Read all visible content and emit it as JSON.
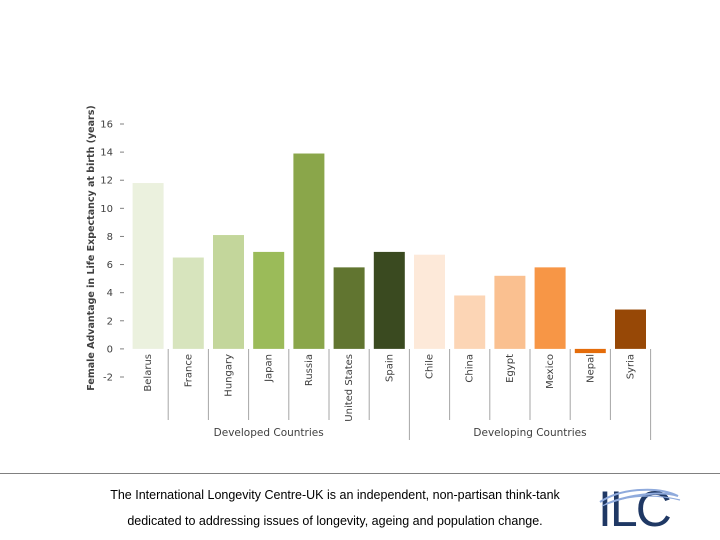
{
  "chart_data": {
    "type": "bar",
    "title": "",
    "xlabel": "",
    "ylabel": "Female Advantage in Life Expectancy at birth (years)",
    "ylim": [
      -2,
      16
    ],
    "yticks": [
      -2,
      0,
      2,
      4,
      6,
      8,
      10,
      12,
      14,
      16
    ],
    "grid": false,
    "categories": [
      "Belarus",
      "France",
      "Hungary",
      "Japan",
      "Russia",
      "United States",
      "Spain",
      "Chile",
      "China",
      "Egypt",
      "Mexico",
      "Nepal",
      "Syria"
    ],
    "values": [
      11.8,
      6.5,
      8.1,
      6.9,
      13.9,
      5.8,
      6.9,
      6.7,
      3.8,
      5.2,
      5.8,
      -0.3,
      2.8
    ],
    "colors": [
      "#ebf1de",
      "#d7e4bd",
      "#c3d69b",
      "#9bbb59",
      "#8aa64a",
      "#617530",
      "#3a4a20",
      "#fde9d9",
      "#fcd5b5",
      "#fac090",
      "#f79646",
      "#e46c0a",
      "#974806"
    ],
    "groups": [
      {
        "label": "Developed Countries",
        "start": 0,
        "end": 6
      },
      {
        "label": "Developing Countries",
        "start": 7,
        "end": 12
      }
    ]
  },
  "footer": {
    "line1": "The International Longevity Centre-UK is an independent, non-partisan think-tank",
    "line2": "dedicated to addressing issues of longevity, ageing and population change."
  },
  "logo": {
    "text": "ILC",
    "color": "#1f3864",
    "accent": "#8faadc"
  }
}
